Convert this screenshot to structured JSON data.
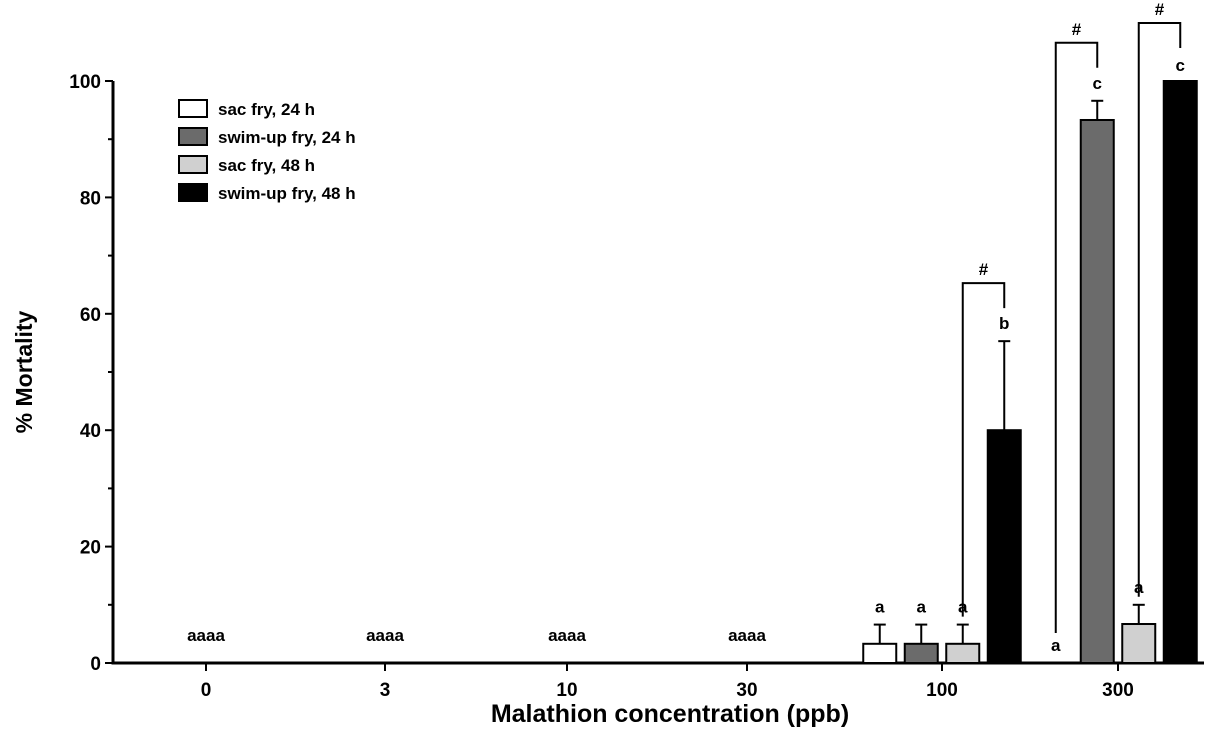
{
  "chart_data": {
    "type": "bar",
    "xlabel": "Malathion concentration (ppb)",
    "ylabel": "% Mortality",
    "ylim": [
      0,
      100
    ],
    "yticks": [
      0,
      20,
      40,
      60,
      80,
      100
    ],
    "grid": false,
    "legend_position": "top-left",
    "categories": [
      "0",
      "3",
      "10",
      "30",
      "100",
      "300"
    ],
    "series": [
      {
        "name": "sac fry, 24 h",
        "color": "#ffffff",
        "values": [
          0,
          0,
          0,
          0,
          3.3,
          0
        ],
        "errors": [
          0,
          0,
          0,
          0,
          3.3,
          0
        ]
      },
      {
        "name": "swim-up fry, 24 h",
        "color": "#6b6b6b",
        "values": [
          0,
          0,
          0,
          0,
          3.3,
          93.3
        ],
        "errors": [
          0,
          0,
          0,
          0,
          3.3,
          3.3
        ]
      },
      {
        "name": "sac fry, 48 h",
        "color": "#d0d0d0",
        "values": [
          0,
          0,
          0,
          0,
          3.3,
          6.7
        ],
        "errors": [
          0,
          0,
          0,
          0,
          3.3,
          3.3
        ]
      },
      {
        "name": "swim-up fry, 48 h",
        "color": "#000000",
        "values": [
          0,
          0,
          0,
          0,
          40,
          100
        ],
        "errors": [
          0,
          0,
          0,
          0,
          15.3,
          0
        ]
      }
    ],
    "group_labels": [
      "aaaa",
      "aaaa",
      "aaaa",
      "aaaa",
      "",
      ""
    ],
    "bar_letters": [
      [
        "",
        "",
        "",
        "",
        "a",
        "a"
      ],
      [
        "",
        "",
        "",
        "",
        "a",
        "c"
      ],
      [
        "",
        "",
        "",
        "",
        "a",
        "a"
      ],
      [
        "",
        "",
        "",
        "",
        "b",
        "c"
      ]
    ],
    "significance_brackets": [
      {
        "category": "100",
        "from_series": 2,
        "to_series": 3,
        "label": "#"
      },
      {
        "category": "300",
        "from_series": 0,
        "to_series": 1,
        "label": "#"
      },
      {
        "category": "300",
        "from_series": 2,
        "to_series": 3,
        "label": "#"
      }
    ]
  }
}
